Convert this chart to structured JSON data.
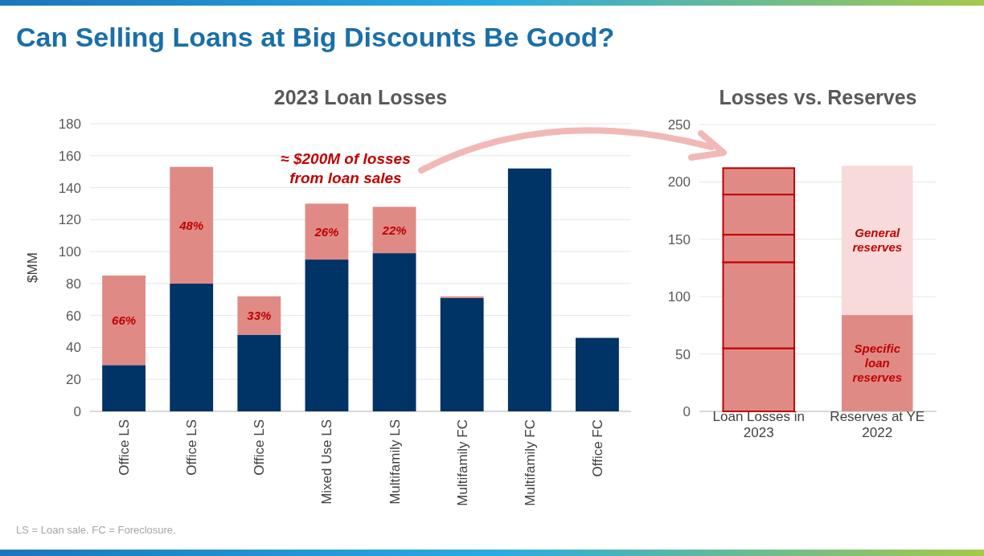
{
  "chart_data": [
    {
      "type": "bar",
      "title": "Can Selling Loans at Big Discounts Be Good?",
      "subtitle": "2023 Loan Losses",
      "ylabel": "$MM",
      "categories": [
        "Office LS",
        "Office LS",
        "Office LS",
        "Mixed Use LS",
        "Multifamily LS",
        "Multifamily FC",
        "Multifamily FC",
        "Office FC"
      ],
      "stacked": true,
      "ylim": [
        0,
        180
      ],
      "yticks": [
        0,
        20,
        40,
        60,
        80,
        100,
        120,
        140,
        160,
        180
      ],
      "grid": "y",
      "series": [
        {
          "color": "#003366",
          "values": [
            29,
            80,
            48,
            95,
            99,
            71,
            152,
            46
          ]
        },
        {
          "color": "#e08a86",
          "values": [
            56,
            73,
            24,
            35,
            29,
            1,
            null,
            null
          ]
        }
      ],
      "annotations": [
        "≈ $200M of losses from loan sales",
        "LS = Loan sale. FC = Foreclosure.",
        "66%",
        "48%",
        "33%",
        "26%",
        "22%"
      ]
    },
    {
      "type": "bar",
      "title": "Losses vs. Reserves",
      "categories": [
        "Loan Losses in 2023",
        "Reserves at YE 2022"
      ],
      "stacked": true,
      "ylim": [
        0,
        250
      ],
      "yticks": [
        0,
        50,
        100,
        150,
        200,
        250
      ],
      "grid": "y",
      "series": [
        {
          "color": "#e08a86",
          "values": [
            55,
            null
          ]
        },
        {
          "color": "#e08a86",
          "values": [
            75,
            null
          ]
        },
        {
          "color": "#e08a86",
          "values": [
            24,
            null
          ]
        },
        {
          "color": "#e08a86",
          "values": [
            35,
            null
          ]
        },
        {
          "color": "#e08a86",
          "values": [
            23,
            null
          ]
        },
        {
          "name": "Specific loan reserves",
          "color": "#e08a86",
          "values": [
            null,
            84
          ]
        },
        {
          "name": "General reserves",
          "color": "#f8dada",
          "values": [
            null,
            130
          ]
        }
      ]
    }
  ]
}
